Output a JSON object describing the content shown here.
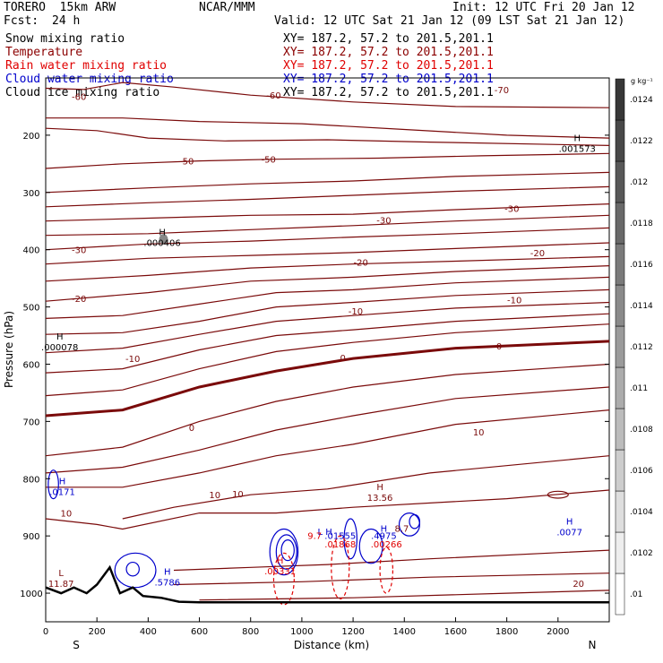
{
  "header": {
    "model": "TORERO  15km ARW",
    "center": "NCAR/MMM",
    "init": "Init: 12 UTC Fri 20 Jan 12",
    "fcst_label": "Fcst:",
    "fcst_value": "24 h",
    "valid": "Valid: 12 UTC Sat 21 Jan 12 (09 LST Sat 21 Jan 12)"
  },
  "fields": [
    {
      "name": "Snow mixing ratio",
      "xy": "XY= 187.2, 57.2 to 201.5,201.1",
      "color": "#000000",
      "xy_color": "#000000"
    },
    {
      "name": "Temperature",
      "xy": "XY= 187.2, 57.2 to 201.5,201.1",
      "color": "#8b0000",
      "xy_color": "#8b0000"
    },
    {
      "name": "Rain water mixing ratio",
      "xy": "XY= 187.2, 57.2 to 201.5,201.1",
      "color": "#e00000",
      "xy_color": "#e00000"
    },
    {
      "name": "Cloud water mixing ratio",
      "xy": "XY= 187.2, 57.2 to 201.5,201.1",
      "color": "#0000cc",
      "xy_color": "#0000cc"
    },
    {
      "name": "Cloud ice mixing ratio",
      "xy": "XY= 187.2, 57.2 to 201.5,201.1",
      "color": "#000000",
      "xy_color": "#000000"
    }
  ],
  "colors": {
    "temperature": "#7a0a0a",
    "rain": "#e00000",
    "cloud_water": "#0000cc",
    "terrain": "#000000"
  },
  "chart_data": {
    "type": "contour",
    "xlabel": "Distance (km)",
    "ylabel": "Pressure (hPa)",
    "xlim": [
      0,
      2200
    ],
    "ylim": [
      1050,
      100
    ],
    "x_ticks": [
      0,
      200,
      400,
      600,
      800,
      1000,
      1200,
      1400,
      1600,
      1800,
      2000
    ],
    "y_ticks": [
      200,
      300,
      400,
      500,
      600,
      700,
      800,
      900,
      1000
    ],
    "south_label": "S",
    "north_label": "N",
    "colorbar": {
      "unit": "g kg⁻¹",
      "ticks": [
        ".01",
        ".0102",
        ".0104",
        ".0106",
        ".0108",
        ".011",
        ".0112",
        ".0114",
        ".0116",
        ".0118",
        ".012",
        ".0122",
        ".0124"
      ]
    },
    "temperature_labels": [
      {
        "text": "-60",
        "x": 890,
        "p": 130
      },
      {
        "text": "-60",
        "x": 130,
        "p": 132
      },
      {
        "text": "-70",
        "x": 1780,
        "p": 120
      },
      {
        "text": "-50",
        "x": 550,
        "p": 245
      },
      {
        "text": "-50",
        "x": 870,
        "p": 242
      },
      {
        "text": "-30",
        "x": 1320,
        "p": 348
      },
      {
        "text": "-30",
        "x": 1820,
        "p": 328
      },
      {
        "text": "-30",
        "x": 130,
        "p": 400
      },
      {
        "text": "-20",
        "x": 1230,
        "p": 422
      },
      {
        "text": "-20",
        "x": 1920,
        "p": 405
      },
      {
        "text": "-20",
        "x": 130,
        "p": 485
      },
      {
        "text": "-10",
        "x": 1210,
        "p": 507
      },
      {
        "text": "-10",
        "x": 1830,
        "p": 487
      },
      {
        "text": "-10",
        "x": 340,
        "p": 590
      },
      {
        "text": "0",
        "x": 1160,
        "p": 588
      },
      {
        "text": "0",
        "x": 1770,
        "p": 568
      },
      {
        "text": "0",
        "x": 570,
        "p": 710
      },
      {
        "text": "10",
        "x": 1690,
        "p": 718
      },
      {
        "text": "10",
        "x": 660,
        "p": 828
      },
      {
        "text": "10",
        "x": 750,
        "p": 826
      },
      {
        "text": "10",
        "x": 80,
        "p": 860
      },
      {
        "text": "20",
        "x": 2080,
        "p": 983
      }
    ],
    "extrema": [
      {
        "kind": "H",
        "value": ".001573",
        "x": 2040,
        "p": 210,
        "color": "#000000"
      },
      {
        "kind": "H",
        "value": ".000406",
        "x": 420,
        "p": 375,
        "color": "#000000"
      },
      {
        "kind": "H",
        "value": ".000078",
        "x": 20,
        "p": 557,
        "color": "#000000"
      },
      {
        "kind": "H",
        "value": ".0171",
        "x": 30,
        "p": 810,
        "color": "#0000cc"
      },
      {
        "kind": "H",
        "value": "13.56",
        "x": 1270,
        "p": 820,
        "color": "#7a0a0a"
      },
      {
        "kind": "H",
        "value": ".0077",
        "x": 2010,
        "p": 880,
        "color": "#0000cc"
      },
      {
        "kind": "L",
        "value": "11.87",
        "x": 25,
        "p": 970,
        "color": "#7a0a0a"
      },
      {
        "kind": "H",
        "value": ".5786",
        "x": 440,
        "p": 968,
        "color": "#0000cc"
      },
      {
        "kind": "H",
        "value": ".00331",
        "x": 880,
        "p": 948,
        "color": "#e00000"
      }
    ],
    "cluster_labels": [
      "L H",
      "9.7",
      ".01555",
      ".01868",
      "H",
      ".4975",
      ".00266",
      "8.7"
    ]
  }
}
